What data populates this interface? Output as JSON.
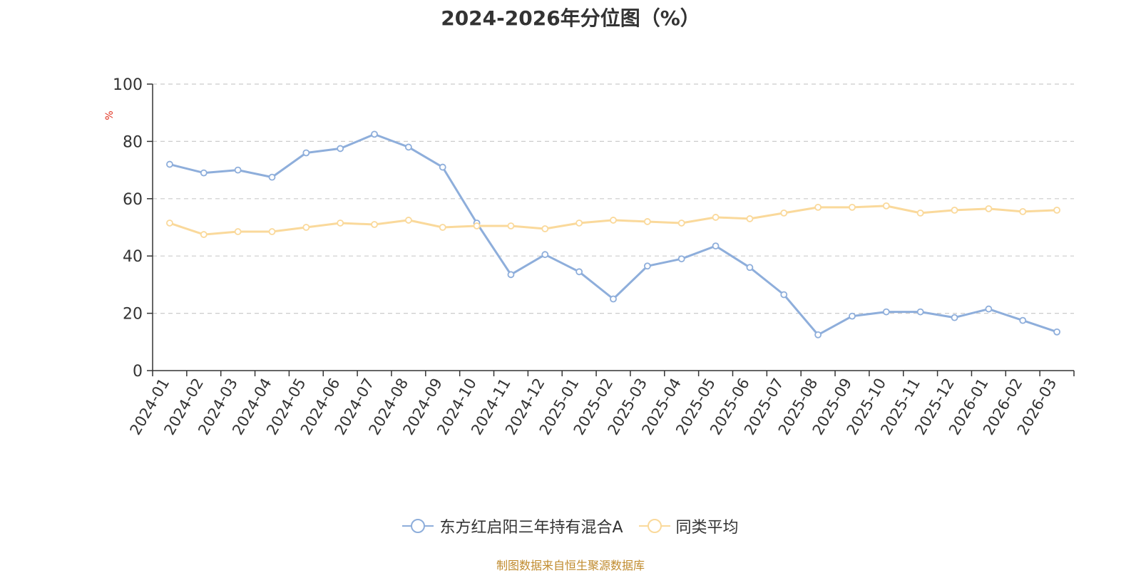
{
  "chart_data": {
    "type": "line",
    "title": "2024-2026年分位图（%）",
    "ylabel": "%",
    "xlabel": "",
    "ylim": [
      0,
      100
    ],
    "yticks": [
      0,
      20,
      40,
      60,
      80,
      100
    ],
    "grid": true,
    "legend_position": "bottom-center",
    "categories": [
      "2024-01",
      "2024-02",
      "2024-03",
      "2024-04",
      "2024-05",
      "2024-06",
      "2024-07",
      "2024-08",
      "2024-09",
      "2024-10",
      "2024-11",
      "2024-12",
      "2025-01",
      "2025-02",
      "2025-03",
      "2025-04",
      "2025-05",
      "2025-06",
      "2025-07",
      "2025-08",
      "2025-09",
      "2025-10",
      "2025-11",
      "2025-12",
      "2026-01",
      "2026-02",
      "2026-03"
    ],
    "series": [
      {
        "name": "东方红启阳三年持有混合A",
        "color": "#8eaedb",
        "values": [
          72,
          69,
          70,
          67.5,
          76,
          77.5,
          82.5,
          78,
          71,
          51.5,
          33.5,
          40.5,
          34.5,
          25,
          36.5,
          39,
          43.5,
          36,
          26.5,
          12.5,
          19,
          20.5,
          20.5,
          18.5,
          21.5,
          17.5,
          13.5
        ]
      },
      {
        "name": "同类平均",
        "color": "#fad99b",
        "values": [
          51.5,
          47.5,
          48.5,
          48.5,
          50,
          51.5,
          51,
          52.5,
          50,
          50.5,
          50.5,
          49.5,
          51.5,
          52.5,
          52,
          51.5,
          53.5,
          53,
          55,
          57,
          57,
          57.5,
          55,
          56,
          56.5,
          55.5,
          56
        ]
      }
    ],
    "source_note": "制图数据来自恒生聚源数据库"
  }
}
